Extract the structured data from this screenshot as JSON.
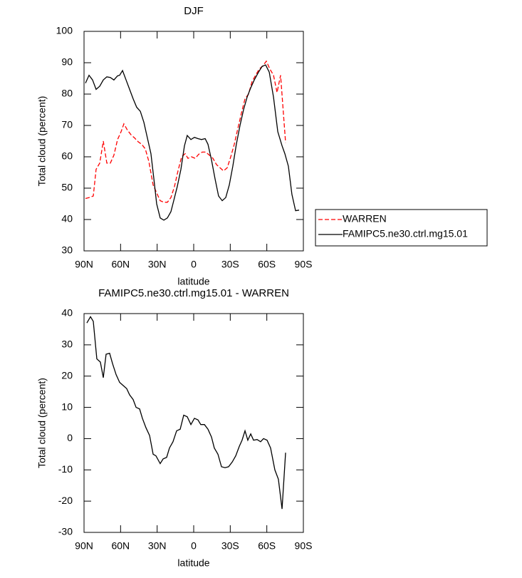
{
  "chart_data": [
    {
      "type": "line",
      "title": "DJF",
      "xlabel": "latitude",
      "ylabel": "Total cloud (percent)",
      "xlim": [
        90,
        -90
      ],
      "xticks": [
        {
          "value": 90,
          "label": "90N"
        },
        {
          "value": 60,
          "label": "60N"
        },
        {
          "value": 30,
          "label": "30N"
        },
        0,
        {
          "value": -30,
          "label": "30S"
        },
        {
          "value": -60,
          "label": "60S"
        },
        {
          "value": -90,
          "label": "90S"
        }
      ],
      "ylim": [
        30,
        100
      ],
      "yticks": [
        30,
        40,
        50,
        60,
        70,
        80,
        90,
        100
      ],
      "legend": "right",
      "series": [
        {
          "name": "WARREN",
          "color": "#ff0000",
          "style": "dashed",
          "x": [
            88.8,
            85.9,
            82.4,
            80.1,
            77.1,
            74.2,
            71.3,
            68.4,
            65.5,
            62.5,
            59.6,
            57.3,
            54.4,
            51.4,
            48.5,
            45.6,
            42.7,
            39.7,
            36.8,
            33.3,
            30.4,
            27.5,
            24.5,
            21.6,
            18.7,
            15.8,
            12.9,
            9.9,
            7,
            4.7,
            1.8,
            -1.2,
            -4.1,
            -7,
            -9.9,
            -12.9,
            -15.8,
            -18.7,
            -21.6,
            -24.5,
            -27.5,
            -30.4,
            -33.3,
            -36.2,
            -39.2,
            -42.1,
            -45,
            -47.9,
            -50.8,
            -53.8,
            -56.7,
            -59.6,
            -62.5,
            -65.5,
            -68.4,
            -71.3,
            -75.4
          ],
          "values": [
            46.7,
            47,
            47.5,
            56,
            58,
            65,
            58,
            58,
            60.5,
            65.5,
            68,
            70.5,
            68.5,
            67,
            66,
            64.8,
            64,
            62.5,
            58.5,
            51,
            48.5,
            46,
            45.5,
            45.5,
            47,
            50.5,
            55.5,
            60,
            61,
            59.5,
            60,
            59.5,
            60.8,
            61.5,
            61.5,
            60.5,
            59.5,
            57.5,
            56.5,
            55.5,
            56.5,
            60,
            64,
            69,
            74,
            78.5,
            80,
            84,
            86,
            88,
            89,
            90.5,
            88,
            86,
            80.5,
            86,
            64.5
          ]
        },
        {
          "name": "FAMIPC5.ne30.ctrl.mg15.01",
          "color": "#000000",
          "style": "solid",
          "x": [
            88.8,
            85.9,
            83,
            80.1,
            77.1,
            74.2,
            71.3,
            68.4,
            65.5,
            62.5,
            60.8,
            58.4,
            55.5,
            52.6,
            49.7,
            46.8,
            43.8,
            40.9,
            38,
            35.1,
            32.7,
            30.4,
            27.5,
            24.5,
            21.6,
            18.7,
            16.4,
            13.5,
            10.5,
            7.6,
            5.3,
            2.3,
            -0.6,
            -3.5,
            -6.4,
            -9.4,
            -11.7,
            -14.6,
            -17.5,
            -20.4,
            -23.4,
            -26.3,
            -29.2,
            -32.1,
            -35,
            -38,
            -40.9,
            -43.8,
            -46.8,
            -49.7,
            -53.2,
            -56.1,
            -59,
            -62,
            -65.5,
            -69,
            -72.5,
            -74.8,
            -77.7,
            -80.6,
            -83.6,
            -86.5
          ],
          "values": [
            83.5,
            86,
            84.5,
            81.5,
            82.5,
            84.5,
            85.5,
            85.3,
            84.5,
            85.8,
            86,
            87.5,
            84.5,
            81.5,
            78.5,
            75.8,
            74.5,
            71,
            66,
            61,
            53,
            45,
            40.5,
            39.8,
            40.5,
            42.5,
            46,
            50.5,
            56,
            63.5,
            66.8,
            65.5,
            66.2,
            65.8,
            65.5,
            65.8,
            64,
            59,
            53,
            47.5,
            46,
            47,
            51,
            57,
            64,
            70,
            75,
            79,
            82,
            84.5,
            87,
            88.8,
            89.3,
            87,
            79,
            68,
            63.5,
            61,
            57,
            48,
            42.8,
            43
          ]
        }
      ]
    },
    {
      "type": "line",
      "title": "FAMIPC5.ne30.ctrl.mg15.01 - WARREN",
      "xlabel": "latitude",
      "ylabel": "Total cloud (percent)",
      "xlim": [
        90,
        -90
      ],
      "xticks": [
        {
          "value": 90,
          "label": "90N"
        },
        {
          "value": 60,
          "label": "60N"
        },
        {
          "value": 30,
          "label": "30N"
        },
        0,
        {
          "value": -30,
          "label": "30S"
        },
        {
          "value": -60,
          "label": "60S"
        },
        {
          "value": -90,
          "label": "90S"
        }
      ],
      "ylim": [
        -30,
        40
      ],
      "yticks": [
        -30,
        -20,
        -10,
        0,
        10,
        20,
        30,
        40
      ],
      "series": [
        {
          "color": "#000000",
          "style": "solid",
          "x": [
            87.7,
            84.7,
            82.4,
            79.5,
            76.6,
            74.2,
            71.9,
            69,
            66.6,
            63.7,
            60.8,
            57.9,
            55,
            52.6,
            49.7,
            47.3,
            44.4,
            42.1,
            39.2,
            36.2,
            33.3,
            31,
            27.5,
            25.1,
            22.2,
            19.9,
            17,
            14,
            11.1,
            8.2,
            5.3,
            2.3,
            -0.6,
            -3.5,
            -5.8,
            -8.8,
            -11.7,
            -14.6,
            -16.9,
            -19.9,
            -22.8,
            -25.7,
            -28.6,
            -31.6,
            -34.5,
            -37.4,
            -39.7,
            -42.1,
            -44.4,
            -46.8,
            -49.1,
            -52,
            -54.9,
            -57.3,
            -60.2,
            -63.1,
            -66.6,
            -69.5,
            -72.5,
            -75.4
          ],
          "values": [
            37,
            39,
            37.5,
            25.5,
            24.5,
            19.5,
            27,
            27.3,
            24,
            20.5,
            18,
            17,
            16,
            14,
            12.5,
            10,
            9.5,
            6.5,
            3.5,
            1,
            -5,
            -5.5,
            -8,
            -6.5,
            -6,
            -3,
            -1,
            2.5,
            3,
            7.5,
            7,
            4.5,
            6.5,
            6,
            4.5,
            4.5,
            3,
            0.5,
            -3,
            -5,
            -9,
            -9.3,
            -9,
            -7.5,
            -5.5,
            -2.5,
            -0.5,
            2.5,
            -0.5,
            1.5,
            -0.5,
            -0.3,
            -1,
            0,
            -0.5,
            -3,
            -10,
            -13,
            -22.5,
            -4.5
          ]
        }
      ]
    }
  ]
}
